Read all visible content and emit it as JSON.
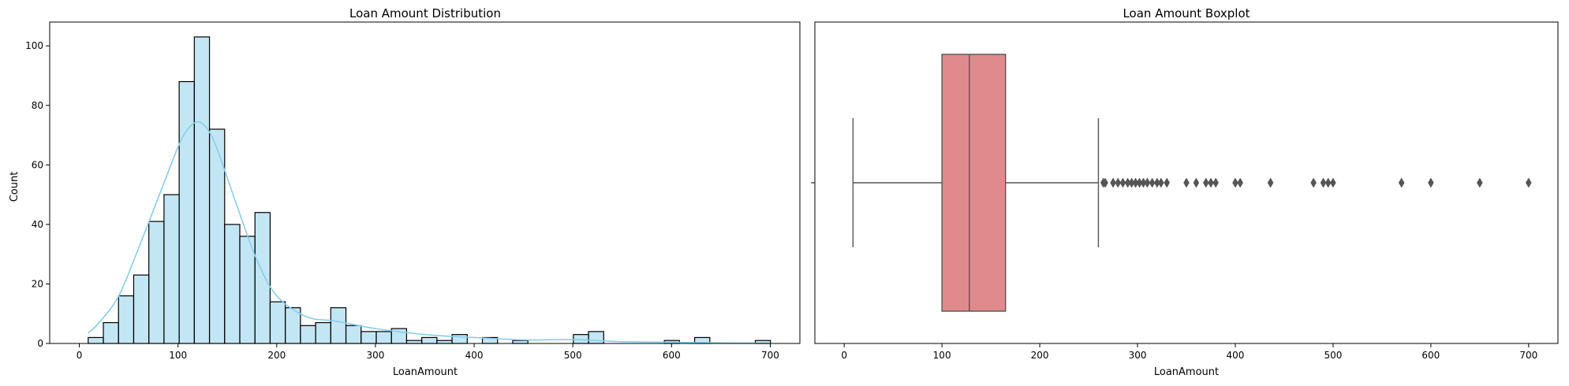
{
  "chart_data": [
    {
      "type": "histogram",
      "title": "Loan Amount Distribution",
      "xlabel": "LoanAmount",
      "ylabel": "Count",
      "xlim": [
        -30,
        730
      ],
      "ylim": [
        0,
        108
      ],
      "x_ticks": [
        0,
        100,
        200,
        300,
        400,
        500,
        600,
        700
      ],
      "y_ticks": [
        0,
        20,
        40,
        60,
        80,
        100
      ],
      "bin_start": 9,
      "bin_width": 15.36,
      "values": [
        2,
        7,
        16,
        23,
        41,
        50,
        88,
        103,
        72,
        40,
        36,
        44,
        14,
        12,
        6,
        7,
        12,
        6,
        4,
        4,
        5,
        1,
        2,
        1,
        3,
        0,
        2,
        0,
        1,
        0,
        0,
        0,
        3,
        4,
        0,
        0,
        0,
        0,
        1,
        0,
        2,
        0,
        0,
        0,
        1
      ],
      "bar_color": "#87CEEB",
      "edge_color": "#000000",
      "kde": {
        "color": "#87CEEB",
        "x": [
          9,
          20,
          40,
          60,
          80,
          100,
          110,
          120,
          130,
          140,
          160,
          180,
          200,
          230,
          260,
          300,
          350,
          400,
          450,
          500,
          550,
          600,
          650,
          700
        ],
        "y": [
          3.5,
          7,
          16,
          32,
          49,
          66,
          72,
          74.5,
          72,
          65,
          46,
          28,
          16,
          9,
          7.5,
          5,
          3,
          2,
          1.2,
          1.3,
          0.6,
          0.4,
          0.2,
          0.1
        ]
      }
    },
    {
      "type": "boxplot",
      "title": "Loan Amount Boxplot",
      "xlabel": "LoanAmount",
      "xlim": [
        -30,
        730
      ],
      "x_ticks": [
        0,
        100,
        200,
        300,
        400,
        500,
        600,
        700
      ],
      "box_color": "#E08A8D",
      "line_color": "#555555",
      "whisker_low": 9,
      "q1": 100,
      "median": 128,
      "q3": 165,
      "whisker_high": 260,
      "outliers": [
        265,
        267,
        275,
        280,
        285,
        290,
        294,
        298,
        302,
        306,
        310,
        315,
        320,
        324,
        330,
        350,
        360,
        370,
        375,
        380,
        400,
        405,
        436,
        480,
        490,
        495,
        500,
        570,
        600,
        650,
        700
      ]
    }
  ]
}
